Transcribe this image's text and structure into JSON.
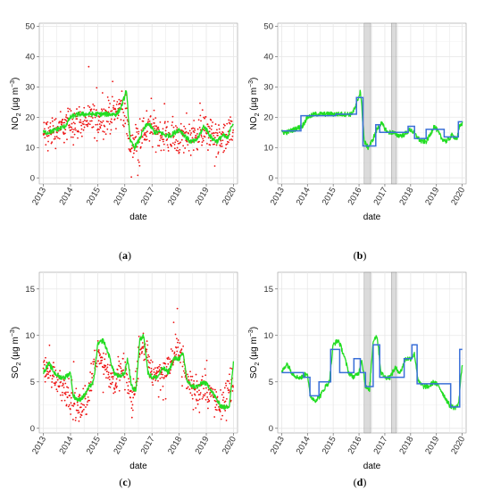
{
  "colors": {
    "raw": "#ee1111",
    "smooth": "#22dd22",
    "step": "#3a6fd8",
    "shade": "#bdbdbd",
    "grid": "#e6e6e6"
  },
  "figure": {
    "panels": [
      {
        "id": "a",
        "caption": "a",
        "ylabel_main": "NO",
        "ylabel_sub": "2",
        "ylabel_unit": " (µg m",
        "ylabel_exp": "−3",
        "ylabel_close": ")",
        "xlabel": "date"
      },
      {
        "id": "b",
        "caption": "b",
        "ylabel_main": "NO",
        "ylabel_sub": "2",
        "ylabel_unit": " (µg m",
        "ylabel_exp": "−3",
        "ylabel_close": ")",
        "xlabel": "date"
      },
      {
        "id": "c",
        "caption": "c",
        "ylabel_main": "SO",
        "ylabel_sub": "2",
        "ylabel_unit": " (µg m",
        "ylabel_exp": "−3",
        "ylabel_close": ")",
        "xlabel": "date"
      },
      {
        "id": "d",
        "caption": "d",
        "ylabel_main": "SO",
        "ylabel_sub": "2",
        "ylabel_unit": " (µg m",
        "ylabel_exp": "−3",
        "ylabel_close": ")",
        "xlabel": "date"
      }
    ]
  },
  "chart_data": [
    {
      "panel": "a",
      "type": "scatter",
      "xlabel": "date",
      "ylabel": "NO2 (µg m−3)",
      "xlim": [
        2012.85,
        2020.15
      ],
      "ylim": [
        -2,
        51
      ],
      "xticks": [
        "2013",
        "2014",
        "2015",
        "2016",
        "2017",
        "2018",
        "2019",
        "2020"
      ],
      "yticks": [
        0,
        10,
        20,
        30,
        40,
        50
      ],
      "raw_scatter_profile": {
        "x": [
          2013.0,
          2013.5,
          2014.0,
          2014.5,
          2015.0,
          2015.5,
          2015.9,
          2016.05,
          2016.2,
          2016.5,
          2017.0,
          2017.5,
          2018.0,
          2018.5,
          2019.0,
          2019.5,
          2019.95
        ],
        "y": [
          14,
          16,
          18,
          19,
          19,
          21,
          24,
          20,
          10,
          14,
          16,
          14,
          13,
          14,
          16,
          12,
          15
        ],
        "spread": 8
      },
      "series": [
        {
          "name": "",
          "kind": "smooth",
          "x": [
            2013.0,
            2013.2,
            2013.5,
            2013.8,
            2014.0,
            2014.3,
            2014.6,
            2014.9,
            2015.2,
            2015.5,
            2015.7,
            2015.85,
            2016.0,
            2016.05,
            2016.1,
            2016.2,
            2016.35,
            2016.5,
            2016.7,
            2016.85,
            2016.95,
            2017.1,
            2017.3,
            2017.5,
            2017.7,
            2017.85,
            2018.0,
            2018.2,
            2018.4,
            2018.6,
            2018.75,
            2018.9,
            2019.0,
            2019.2,
            2019.4,
            2019.6,
            2019.8,
            2019.9,
            2020.0
          ],
          "y": [
            15,
            15,
            16,
            17,
            20,
            21,
            21,
            21,
            21,
            21,
            21,
            23,
            27,
            29,
            24,
            12,
            10,
            12,
            16,
            18,
            17,
            15,
            15,
            14,
            14,
            15,
            16,
            14,
            12,
            12,
            14,
            17,
            16,
            13,
            12,
            14,
            13,
            17,
            18
          ]
        }
      ]
    },
    {
      "panel": "b",
      "type": "line",
      "xlabel": "date",
      "ylabel": "NO2 (µg m−3)",
      "xlim": [
        2012.85,
        2020.15
      ],
      "ylim": [
        -2,
        51
      ],
      "xticks": [
        "2013",
        "2014",
        "2015",
        "2016",
        "2017",
        "2018",
        "2019",
        "2020"
      ],
      "yticks": [
        0,
        10,
        20,
        30,
        40,
        50
      ],
      "shaded_periods": [
        [
          2016.2,
          2016.45
        ],
        [
          2017.25,
          2017.45
        ]
      ],
      "series": [
        {
          "name": "",
          "kind": "smooth",
          "x": [
            2013.0,
            2013.2,
            2013.5,
            2013.8,
            2014.0,
            2014.3,
            2014.6,
            2014.9,
            2015.2,
            2015.5,
            2015.7,
            2015.85,
            2016.0,
            2016.05,
            2016.1,
            2016.2,
            2016.35,
            2016.5,
            2016.7,
            2016.85,
            2016.95,
            2017.1,
            2017.3,
            2017.5,
            2017.7,
            2017.85,
            2018.0,
            2018.2,
            2018.4,
            2018.6,
            2018.75,
            2018.9,
            2019.0,
            2019.2,
            2019.4,
            2019.6,
            2019.8,
            2019.9,
            2020.0
          ],
          "y": [
            15,
            15,
            16,
            17,
            20,
            21,
            21,
            21,
            21,
            21,
            21,
            23,
            27,
            29,
            24,
            12,
            10,
            12,
            16,
            18,
            17,
            15,
            15,
            14,
            14,
            15,
            16,
            14,
            12,
            12,
            14,
            17,
            16,
            13,
            12,
            14,
            13,
            17,
            18
          ]
        },
        {
          "name": "",
          "kind": "step",
          "x": [
            2013.0,
            2013.75,
            2015.1,
            2015.9,
            2016.15,
            2016.65,
            2016.8,
            2017.2,
            2017.9,
            2018.15,
            2018.6,
            2018.95,
            2019.3,
            2019.85,
            2020.0
          ],
          "y": [
            15.5,
            20.5,
            21,
            26.5,
            10.5,
            17.5,
            15,
            15,
            17,
            13,
            16,
            16,
            13.5,
            18.5,
            18.5
          ]
        }
      ]
    },
    {
      "panel": "c",
      "type": "scatter",
      "xlabel": "date",
      "ylabel": "SO2 (µg m−3)",
      "xlim": [
        2012.85,
        2020.15
      ],
      "ylim": [
        -0.5,
        16.8
      ],
      "xticks": [
        "2013",
        "2014",
        "2015",
        "2016",
        "2017",
        "2018",
        "2019",
        "2020"
      ],
      "yticks": [
        0,
        5,
        10,
        15
      ],
      "raw_scatter_profile": {
        "x": [
          2013.0,
          2013.5,
          2014.0,
          2014.3,
          2014.6,
          2015.0,
          2015.3,
          2015.6,
          2016.0,
          2016.3,
          2016.6,
          2017.0,
          2017.5,
          2018.0,
          2018.3,
          2018.6,
          2019.0,
          2019.5,
          2019.95
        ],
        "y": [
          6.5,
          5.5,
          3.5,
          2.0,
          3.0,
          8.5,
          6.5,
          5.0,
          6.5,
          2.5,
          9.5,
          6.0,
          6.0,
          9.0,
          5.0,
          4.0,
          4.5,
          2.0,
          5.0
        ],
        "spread": 2.4
      },
      "series": [
        {
          "name": "",
          "kind": "smooth",
          "x": [
            2013.0,
            2013.2,
            2013.4,
            2013.6,
            2013.8,
            2014.0,
            2014.1,
            2014.3,
            2014.5,
            2014.7,
            2014.85,
            2015.0,
            2015.2,
            2015.4,
            2015.6,
            2015.8,
            2016.0,
            2016.1,
            2016.25,
            2016.4,
            2016.55,
            2016.7,
            2016.85,
            2017.0,
            2017.2,
            2017.4,
            2017.6,
            2017.8,
            2018.0,
            2018.15,
            2018.3,
            2018.5,
            2018.7,
            2018.9,
            2019.1,
            2019.3,
            2019.5,
            2019.7,
            2019.85,
            2020.0
          ],
          "y": [
            6,
            7,
            6,
            5.5,
            5.5,
            6,
            3.5,
            3,
            3.5,
            4.5,
            5,
            9,
            9.5,
            8,
            6,
            5.5,
            6,
            7.5,
            4.5,
            4,
            9.5,
            10,
            6,
            5.5,
            5.5,
            6.5,
            6,
            7.5,
            7.5,
            8,
            5,
            4.5,
            4.5,
            5,
            4.5,
            3.5,
            2.5,
            2.2,
            2.5,
            7
          ]
        }
      ]
    },
    {
      "panel": "d",
      "type": "line",
      "xlabel": "date",
      "ylabel": "SO2 (µg m−3)",
      "xlim": [
        2012.85,
        2020.15
      ],
      "ylim": [
        -0.5,
        16.8
      ],
      "xticks": [
        "2013",
        "2014",
        "2015",
        "2016",
        "2017",
        "2018",
        "2019",
        "2020"
      ],
      "yticks": [
        0,
        5,
        10,
        15
      ],
      "shaded_periods": [
        [
          2016.2,
          2016.45
        ],
        [
          2017.25,
          2017.45
        ]
      ],
      "series": [
        {
          "name": "",
          "kind": "smooth",
          "x": [
            2013.0,
            2013.2,
            2013.4,
            2013.6,
            2013.8,
            2014.0,
            2014.1,
            2014.3,
            2014.5,
            2014.7,
            2014.85,
            2015.0,
            2015.2,
            2015.4,
            2015.6,
            2015.8,
            2016.0,
            2016.1,
            2016.25,
            2016.4,
            2016.55,
            2016.7,
            2016.85,
            2017.0,
            2017.2,
            2017.4,
            2017.6,
            2017.8,
            2018.0,
            2018.15,
            2018.3,
            2018.5,
            2018.7,
            2018.9,
            2019.1,
            2019.3,
            2019.5,
            2019.7,
            2019.85,
            2020.0
          ],
          "y": [
            6,
            7,
            6,
            5.5,
            5.5,
            6,
            3.5,
            3,
            3.5,
            4.5,
            5,
            9,
            9.5,
            8,
            6,
            5.5,
            6,
            7.5,
            4.5,
            4,
            9.5,
            10,
            6,
            5.5,
            5.5,
            6.5,
            6,
            7.5,
            7.5,
            8,
            5,
            4.5,
            4.5,
            5,
            4.5,
            3.5,
            2.5,
            2.2,
            2.5,
            7
          ]
        },
        {
          "name": "",
          "kind": "step",
          "x": [
            2013.0,
            2013.85,
            2014.1,
            2014.45,
            2014.9,
            2015.25,
            2015.8,
            2016.05,
            2016.25,
            2016.55,
            2016.8,
            2017.2,
            2017.75,
            2018.05,
            2018.25,
            2019.2,
            2019.55,
            2019.9,
            2020.0
          ],
          "y": [
            6,
            5.5,
            3.5,
            5,
            8.5,
            6,
            7.5,
            6,
            4.5,
            9,
            5.5,
            5.5,
            7.5,
            9,
            4.8,
            4.8,
            2.3,
            8.5,
            8.5
          ]
        }
      ]
    }
  ]
}
